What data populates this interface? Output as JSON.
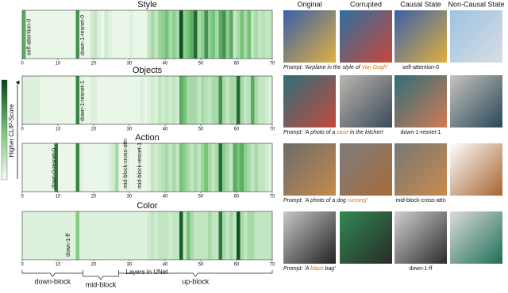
{
  "chart_data": [
    {
      "type": "heatmap-strip",
      "title": "Style",
      "xlim": [
        0,
        70
      ],
      "xticks": [
        0,
        10,
        20,
        30,
        40,
        50,
        60,
        70
      ],
      "values": [
        0.6,
        0.05,
        0.05,
        0.05,
        0.05,
        0.05,
        0.05,
        0.05,
        0.05,
        0.05,
        0.05,
        0.05,
        0.05,
        0.05,
        0.05,
        0.7,
        0.05,
        0.05,
        0.05,
        0.15,
        0.2,
        0.1,
        0.05,
        0.15,
        0.1,
        0.05,
        0.05,
        0.05,
        0.05,
        0.05,
        0.1,
        0.05,
        0.05,
        0.05,
        0.05,
        0.2,
        0.3,
        0.2,
        0.35,
        0.4,
        0.5,
        0.3,
        0.4,
        0.3,
        0.95,
        0.4,
        0.5,
        0.6,
        0.85,
        0.3,
        0.4,
        0.7,
        0.4,
        0.5,
        0.3,
        0.6,
        0.7,
        0.4,
        0.6,
        0.2,
        0.3,
        0.5,
        0.3,
        0.5,
        0.2,
        0.3,
        0.2,
        0.25,
        0.2,
        0.2
      ],
      "annotations": [
        {
          "text": "self-attention-0",
          "layer": 0
        },
        {
          "text": "down-1-resnet-0",
          "layer": 15
        }
      ]
    },
    {
      "type": "heatmap-strip",
      "title": "Objects",
      "xlim": [
        0,
        70
      ],
      "xticks": [
        0,
        10,
        20,
        30,
        40,
        50,
        60,
        70
      ],
      "values": [
        0.1,
        0.1,
        0.1,
        0.1,
        0.1,
        0.05,
        0.05,
        0.05,
        0.05,
        0.05,
        0.05,
        0.05,
        0.05,
        0.05,
        0.05,
        0.75,
        0.1,
        0.05,
        0.05,
        0.1,
        0.1,
        0.05,
        0.05,
        0.05,
        0.05,
        0.05,
        0.05,
        0.05,
        0.05,
        0.05,
        0.05,
        0.05,
        0.05,
        0.1,
        0.05,
        0.1,
        0.15,
        0.1,
        0.2,
        0.15,
        0.2,
        0.15,
        0.2,
        0.15,
        0.6,
        0.5,
        0.3,
        0.3,
        0.3,
        0.2,
        0.3,
        0.25,
        0.2,
        0.3,
        0.3,
        0.7,
        0.3,
        0.2,
        0.3,
        0.3,
        0.85,
        0.3,
        0.2,
        0.25,
        0.6,
        0.3,
        0.2,
        0.2,
        0.15,
        0.1
      ],
      "annotations": [
        {
          "text": "down-1-resnet-1",
          "layer": 15
        }
      ]
    },
    {
      "type": "heatmap-strip",
      "title": "Action",
      "xlim": [
        0,
        70
      ],
      "xticks": [
        0,
        10,
        20,
        30,
        40,
        50,
        60,
        70
      ],
      "values": [
        0.05,
        0.05,
        0.05,
        0.05,
        0.05,
        0.05,
        0.05,
        0.05,
        0.05,
        0.8,
        0.05,
        0.05,
        0.05,
        0.05,
        0.05,
        0.75,
        0.1,
        0.05,
        0.05,
        0.05,
        0.05,
        0.05,
        0.05,
        0.05,
        0.1,
        0.15,
        0.3,
        0.05,
        0.05,
        0.1,
        0.05,
        0.05,
        0.05,
        0.05,
        0.05,
        0.1,
        0.2,
        0.15,
        0.2,
        0.25,
        0.3,
        0.2,
        0.3,
        0.2,
        0.5,
        0.4,
        0.3,
        0.2,
        0.3,
        0.2,
        0.35,
        0.5,
        0.3,
        0.2,
        0.3,
        0.85,
        0.4,
        0.3,
        0.2,
        0.6,
        0.5,
        0.6,
        0.4,
        0.3,
        0.2,
        0.3,
        0.2,
        0.2,
        0.15,
        0.1
      ],
      "annotations": [
        {
          "text": "down-0-resnet-0",
          "layer": 7
        },
        {
          "text": "mid-block-cross-attn",
          "layer": 27
        },
        {
          "text": "mid-block-resnet-1",
          "layer": 31
        }
      ]
    },
    {
      "type": "heatmap-strip",
      "title": "Color",
      "xlim": [
        0,
        70
      ],
      "xticks": [
        0,
        10,
        20,
        30,
        40,
        50,
        60,
        70
      ],
      "values": [
        0.1,
        0.1,
        0.1,
        0.1,
        0.1,
        0.1,
        0.1,
        0.1,
        0.1,
        0.1,
        0.1,
        0.1,
        0.1,
        0.1,
        0.1,
        0.45,
        0.1,
        0.1,
        0.1,
        0.1,
        0.1,
        0.1,
        0.1,
        0.1,
        0.1,
        0.1,
        0.1,
        0.1,
        0.1,
        0.1,
        0.1,
        0.1,
        0.1,
        0.1,
        0.1,
        0.15,
        0.2,
        0.15,
        0.2,
        0.2,
        0.2,
        0.15,
        0.2,
        0.2,
        0.9,
        0.2,
        0.5,
        0.3,
        0.2,
        0.2,
        0.2,
        0.2,
        0.3,
        0.2,
        0.2,
        0.8,
        0.3,
        0.2,
        0.3,
        0.2,
        0.95,
        0.3,
        0.2,
        0.3,
        0.3,
        0.2,
        0.2,
        0.2,
        0.2,
        0.2
      ],
      "annotations": [
        {
          "text": "down-1-ff",
          "layer": 11
        }
      ]
    }
  ],
  "colorbar": {
    "label": "Higher CLIP-Score",
    "colors": [
      "#f7fcf5",
      "#74c476",
      "#00441b"
    ]
  },
  "x_axis_label": "Layers in UNet",
  "blocks": [
    {
      "label": "down-block",
      "start": 0,
      "end": 17
    },
    {
      "label": "mid-block",
      "start": 17,
      "end": 27
    },
    {
      "label": "up-block",
      "start": 27,
      "end": 70
    }
  ],
  "image_grid": {
    "columns": [
      "Original",
      "Corrupted",
      "Causal State",
      "Non-Causal State"
    ],
    "highlight_color": "#d9730d",
    "rows": [
      {
        "prompt": [
          {
            "text": "Prompt: 'Airplane in the style of "
          },
          {
            "text": "Van Gogh",
            "highlight": true
          },
          {
            "text": "'"
          }
        ],
        "causal_state_label": "self-attention-0"
      },
      {
        "prompt": [
          {
            "text": "Prompt: 'A photo of a "
          },
          {
            "text": "vase",
            "highlight": true
          },
          {
            "text": " in the kitchen'"
          }
        ],
        "causal_state_label": "down-1-resnet-1"
      },
      {
        "prompt": [
          {
            "text": "Prompt: 'A photo of a dog "
          },
          {
            "text": "running",
            "highlight": true
          },
          {
            "text": "'"
          }
        ],
        "causal_state_label": "mid-block-cross-attn"
      },
      {
        "prompt": [
          {
            "text": "Prompt: 'A "
          },
          {
            "text": "black",
            "highlight": true
          },
          {
            "text": " bag'"
          }
        ],
        "causal_state_label": "down-1-ff"
      }
    ]
  }
}
